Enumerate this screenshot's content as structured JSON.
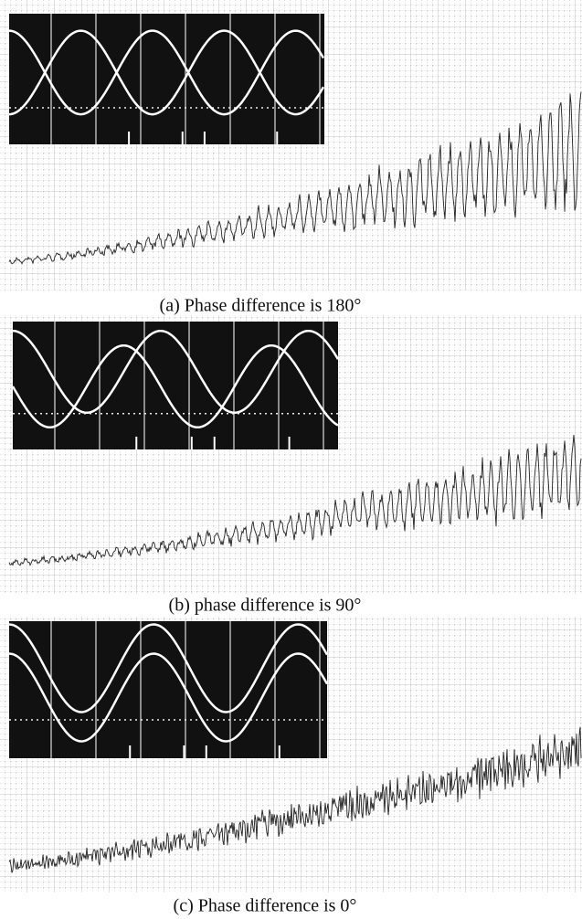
{
  "panels": [
    {
      "caption": "(a) Phase difference is 180°"
    },
    {
      "caption": "(b) phase difference is 90°"
    },
    {
      "caption": "(c) Phase difference is 0°"
    }
  ]
}
